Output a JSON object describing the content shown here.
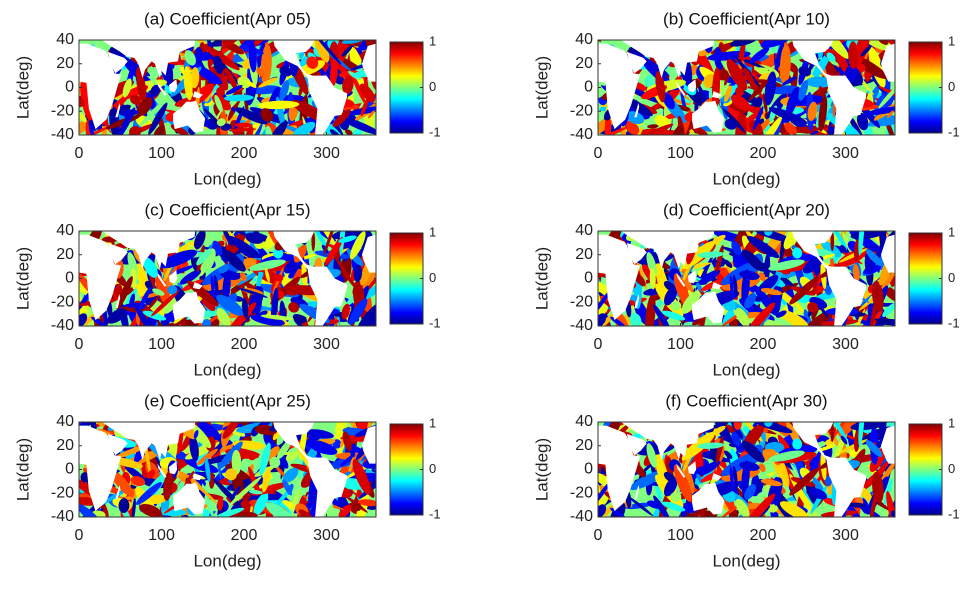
{
  "chart_data": [
    {
      "type": "heatmap",
      "title": "(a) Coefficient(Apr 05)",
      "xlabel": "Lon(deg)",
      "ylabel": "Lat(deg)",
      "xlim": [
        0,
        360
      ],
      "ylim": [
        -40,
        40
      ],
      "xticks": [
        0,
        100,
        200,
        300
      ],
      "yticks": [
        -40,
        -20,
        0,
        20,
        40
      ],
      "colorbar": {
        "clim": [
          -1,
          1
        ],
        "ticks": [
          -1,
          0,
          1
        ],
        "colormap": "jet"
      }
    },
    {
      "type": "heatmap",
      "title": "(b) Coefficient(Apr 10)",
      "xlabel": "Lon(deg)",
      "ylabel": "Lat(deg)",
      "xlim": [
        0,
        360
      ],
      "ylim": [
        -40,
        40
      ],
      "xticks": [
        0,
        100,
        200,
        300
      ],
      "yticks": [
        -40,
        -20,
        0,
        20,
        40
      ],
      "colorbar": {
        "clim": [
          -1,
          1
        ],
        "ticks": [
          -1,
          0,
          1
        ],
        "colormap": "jet"
      }
    },
    {
      "type": "heatmap",
      "title": "(c) Coefficient(Apr 15)",
      "xlabel": "Lon(deg)",
      "ylabel": "Lat(deg)",
      "xlim": [
        0,
        360
      ],
      "ylim": [
        -40,
        40
      ],
      "xticks": [
        0,
        100,
        200,
        300
      ],
      "yticks": [
        -40,
        -20,
        0,
        20,
        40
      ],
      "colorbar": {
        "clim": [
          -1,
          1
        ],
        "ticks": [
          -1,
          0,
          1
        ],
        "colormap": "jet"
      }
    },
    {
      "type": "heatmap",
      "title": "(d) Coefficient(Apr 20)",
      "xlabel": "Lon(deg)",
      "ylabel": "Lat(deg)",
      "xlim": [
        0,
        360
      ],
      "ylim": [
        -40,
        40
      ],
      "xticks": [
        0,
        100,
        200,
        300
      ],
      "yticks": [
        -40,
        -20,
        0,
        20,
        40
      ],
      "colorbar": {
        "clim": [
          -1,
          1
        ],
        "ticks": [
          -1,
          0,
          1
        ],
        "colormap": "jet"
      }
    },
    {
      "type": "heatmap",
      "title": "(e) Coefficient(Apr 25)",
      "xlabel": "Lon(deg)",
      "ylabel": "Lat(deg)",
      "xlim": [
        0,
        360
      ],
      "ylim": [
        -40,
        40
      ],
      "xticks": [
        0,
        100,
        200,
        300
      ],
      "yticks": [
        -40,
        -20,
        0,
        20,
        40
      ],
      "colorbar": {
        "clim": [
          -1,
          1
        ],
        "ticks": [
          -1,
          0,
          1
        ],
        "colormap": "jet"
      }
    },
    {
      "type": "heatmap",
      "title": "(f) Coefficient(Apr 30)",
      "xlabel": "Lon(deg)",
      "ylabel": "Lat(deg)",
      "xlim": [
        0,
        360
      ],
      "ylim": [
        -40,
        40
      ],
      "xticks": [
        0,
        100,
        200,
        300
      ],
      "yticks": [
        -40,
        -20,
        0,
        20,
        40
      ],
      "colorbar": {
        "clim": [
          -1,
          1
        ],
        "ticks": [
          -1,
          0,
          1
        ],
        "colormap": "jet"
      }
    }
  ]
}
